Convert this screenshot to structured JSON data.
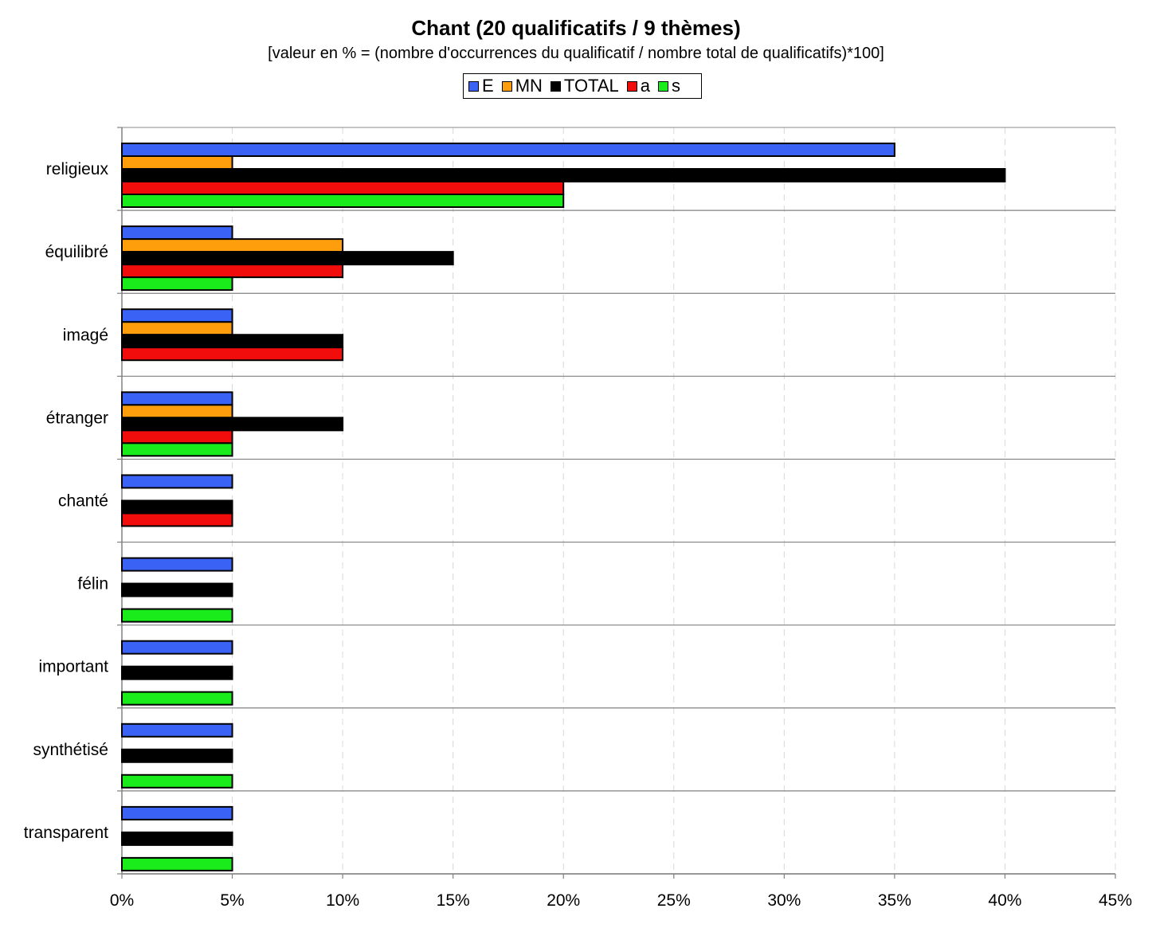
{
  "chart_data": {
    "type": "bar",
    "orientation": "horizontal",
    "title": "Chant (20 qualificatifs / 9 thèmes)",
    "subtitle": "[valeur en % = (nombre d'occurrences du qualificatif / nombre total de qualificatifs)*100]",
    "categories": [
      "religieux",
      "équilibré",
      "imagé",
      "étranger",
      "chanté",
      "félin",
      "important",
      "synthétisé",
      "transparent"
    ],
    "series": [
      {
        "name": "E",
        "color": "#3a63f5",
        "values": [
          35,
          5,
          5,
          5,
          5,
          5,
          5,
          5,
          5
        ]
      },
      {
        "name": "MN",
        "color": "#ff9e0d",
        "values": [
          5,
          10,
          5,
          5,
          0,
          0,
          0,
          0,
          0
        ]
      },
      {
        "name": "TOTAL",
        "color": "#000000",
        "values": [
          40,
          15,
          10,
          10,
          5,
          5,
          5,
          5,
          5
        ]
      },
      {
        "name": "a",
        "color": "#f20d0d",
        "values": [
          20,
          10,
          10,
          5,
          5,
          0,
          0,
          0,
          0
        ]
      },
      {
        "name": "s",
        "color": "#1aeb1a",
        "values": [
          20,
          5,
          0,
          5,
          0,
          5,
          5,
          5,
          5
        ]
      }
    ],
    "xlim": [
      0,
      45
    ],
    "xticks": [
      "0%",
      "5%",
      "10%",
      "15%",
      "20%",
      "25%",
      "30%",
      "35%",
      "40%",
      "45%"
    ],
    "xlabel": "",
    "ylabel": "",
    "grid": "vertical dashed",
    "legend": "top-center"
  }
}
